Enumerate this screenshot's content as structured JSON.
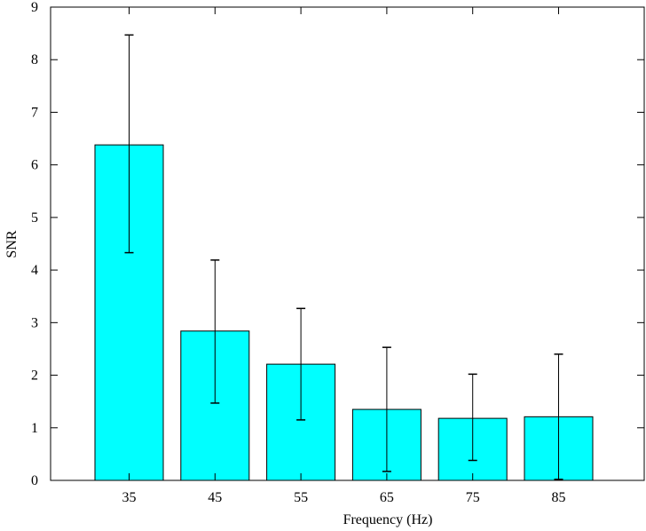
{
  "chart_data": {
    "type": "bar",
    "title": "",
    "xlabel": "Frequency (Hz)",
    "ylabel": "SNR",
    "categories": [
      "35",
      "45",
      "55",
      "65",
      "75",
      "85"
    ],
    "values": [
      6.38,
      2.84,
      2.21,
      1.35,
      1.18,
      1.21
    ],
    "error_low": [
      4.33,
      1.47,
      1.15,
      0.17,
      0.38,
      0.02
    ],
    "error_high": [
      8.47,
      4.19,
      3.27,
      2.53,
      2.02,
      2.4
    ],
    "ylim": [
      0,
      9
    ],
    "yticks": [
      "0",
      "1",
      "2",
      "3",
      "4",
      "5",
      "6",
      "7",
      "8",
      "9"
    ],
    "bar_color": "#00ffff",
    "grid": false,
    "legend": false
  }
}
